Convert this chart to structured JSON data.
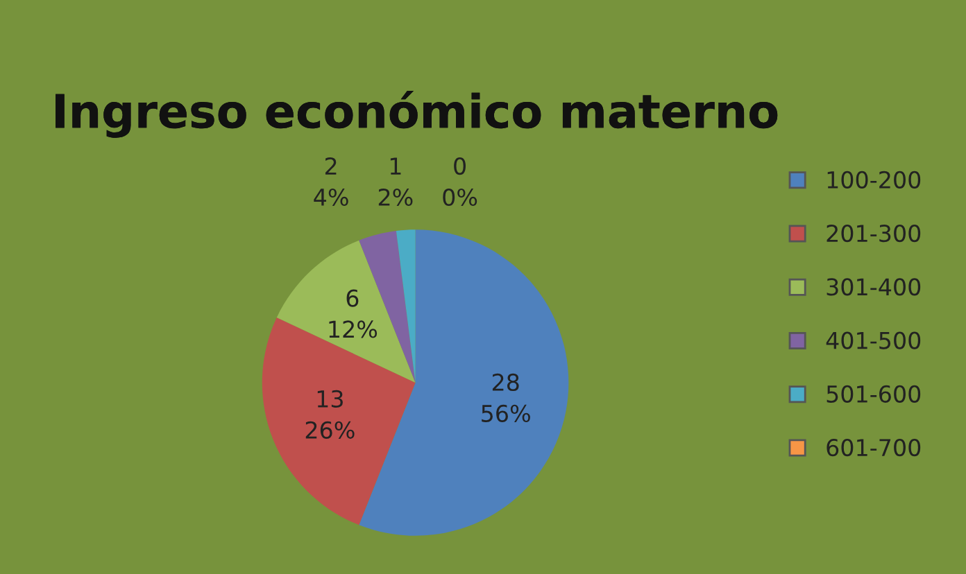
{
  "chart_data": {
    "type": "pie",
    "title": "Ingreso económico materno",
    "categories": [
      "100-200",
      "201-300",
      "301-400",
      "401-500",
      "501-600",
      "601-700"
    ],
    "values": [
      28,
      13,
      6,
      2,
      1,
      0
    ],
    "value_labels": [
      "28\n56%",
      "13\n26%",
      "6\n12%",
      "2\n4%",
      "1\n2%",
      "0\n0%"
    ],
    "colors": [
      "#4f81bd",
      "#c0504d",
      "#9bbb59",
      "#8064a2",
      "#4bacc6",
      "#f79646"
    ],
    "legend": "right"
  }
}
